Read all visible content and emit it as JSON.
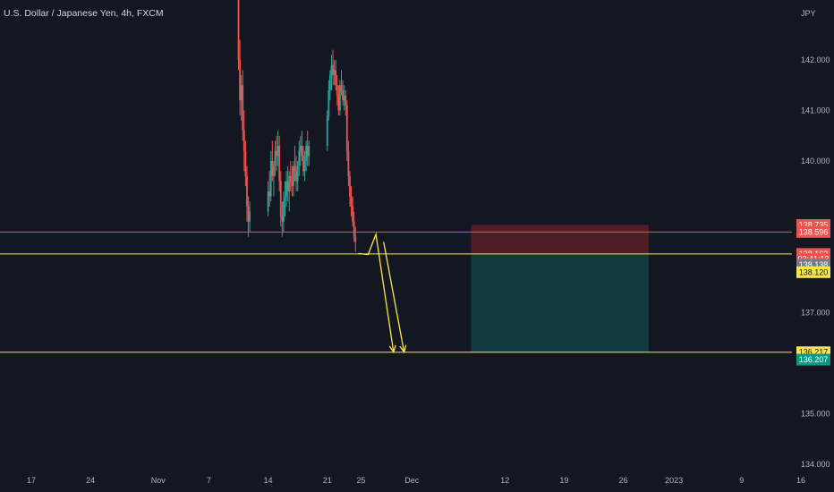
{
  "header": {
    "title": "U.S. Dollar / Japanese Yen, 4h, FXCM"
  },
  "axis": {
    "currency": "JPY"
  },
  "colors": {
    "background": "#131722",
    "up": "#26a69a",
    "down": "#ef5350",
    "drawing": "#fbe649",
    "stop_zone": "#5b1f27",
    "target_zone": "#123f43"
  },
  "chart_data": {
    "type": "candlestick",
    "title": "U.S. Dollar / Japanese Yen, 4h, FXCM",
    "y_unit": "JPY",
    "y_ticks": [
      {
        "value": 134,
        "label": "134.000"
      },
      {
        "value": 135,
        "label": "135.000"
      },
      {
        "value": 137,
        "label": "137.000"
      },
      {
        "value": 140,
        "label": "140.000"
      },
      {
        "value": 141,
        "label": "141.000"
      },
      {
        "value": 142,
        "label": "142.000"
      }
    ],
    "x_ticks": [
      {
        "date": "2022-10-17",
        "label": "17"
      },
      {
        "date": "2022-10-24",
        "label": "24"
      },
      {
        "date": "2022-11-01",
        "label": "Nov"
      },
      {
        "date": "2022-11-07",
        "label": "7"
      },
      {
        "date": "2022-11-14",
        "label": "14"
      },
      {
        "date": "2022-11-21",
        "label": "21"
      },
      {
        "date": "2022-11-25",
        "label": "25"
      },
      {
        "date": "2022-12-01",
        "label": "Dec"
      },
      {
        "date": "2022-12-12",
        "label": "12"
      },
      {
        "date": "2022-12-19",
        "label": "19"
      },
      {
        "date": "2022-12-26",
        "label": "26"
      },
      {
        "date": "2023-01-01",
        "label": "2023"
      },
      {
        "date": "2023-01-09",
        "label": "9"
      },
      {
        "date": "2023-01-16",
        "label": "16"
      }
    ],
    "candles": [
      [
        "2022-11-10 00:00",
        146.4,
        146.6,
        146.1,
        146.2
      ],
      [
        "2022-11-10 04:00",
        146.2,
        146.3,
        145.9,
        146.0
      ],
      [
        "2022-11-10 08:00",
        146.0,
        146.2,
        144.5,
        144.6
      ],
      [
        "2022-11-10 12:00",
        144.6,
        144.7,
        141.8,
        142.0
      ],
      [
        "2022-11-10 16:00",
        142.0,
        142.4,
        140.9,
        141.2
      ],
      [
        "2022-11-10 20:00",
        141.2,
        141.7,
        140.8,
        141.5
      ],
      [
        "2022-11-11 00:00",
        141.5,
        141.8,
        140.4,
        140.6
      ],
      [
        "2022-11-11 04:00",
        140.6,
        141.0,
        139.8,
        140.2
      ],
      [
        "2022-11-11 08:00",
        140.2,
        140.4,
        139.5,
        139.7
      ],
      [
        "2022-11-11 12:00",
        139.7,
        139.9,
        138.8,
        139.1
      ],
      [
        "2022-11-11 16:00",
        139.1,
        139.3,
        138.5,
        138.8
      ],
      [
        "2022-11-11 20:00",
        138.8,
        139.2,
        138.6,
        139.0
      ],
      [
        "2022-11-14 00:00",
        139.0,
        139.6,
        138.9,
        139.4
      ],
      [
        "2022-11-14 04:00",
        139.4,
        139.8,
        139.1,
        139.3
      ],
      [
        "2022-11-14 08:00",
        139.3,
        140.2,
        139.2,
        140.0
      ],
      [
        "2022-11-14 12:00",
        140.0,
        140.4,
        139.6,
        139.7
      ],
      [
        "2022-11-14 16:00",
        139.7,
        140.0,
        139.3,
        139.9
      ],
      [
        "2022-11-14 20:00",
        139.9,
        140.4,
        139.7,
        140.2
      ],
      [
        "2022-11-15 00:00",
        140.2,
        140.5,
        139.8,
        140.1
      ],
      [
        "2022-11-15 04:00",
        140.1,
        140.6,
        139.9,
        140.3
      ],
      [
        "2022-11-15 08:00",
        140.3,
        140.5,
        139.4,
        139.6
      ],
      [
        "2022-11-15 12:00",
        139.6,
        139.8,
        138.7,
        138.9
      ],
      [
        "2022-11-15 16:00",
        138.9,
        139.2,
        138.5,
        138.8
      ],
      [
        "2022-11-15 20:00",
        138.8,
        139.4,
        138.6,
        139.2
      ],
      [
        "2022-11-16 00:00",
        139.2,
        139.6,
        138.9,
        139.3
      ],
      [
        "2022-11-16 04:00",
        139.3,
        139.8,
        139.1,
        139.6
      ],
      [
        "2022-11-16 08:00",
        139.6,
        139.9,
        139.2,
        139.4
      ],
      [
        "2022-11-16 12:00",
        139.4,
        139.8,
        139.0,
        139.7
      ],
      [
        "2022-11-16 16:00",
        139.7,
        140.0,
        139.4,
        139.6
      ],
      [
        "2022-11-16 20:00",
        139.6,
        139.9,
        139.3,
        139.5
      ],
      [
        "2022-11-17 00:00",
        139.5,
        140.0,
        139.3,
        139.9
      ],
      [
        "2022-11-17 04:00",
        139.9,
        140.3,
        139.6,
        139.8
      ],
      [
        "2022-11-17 08:00",
        139.8,
        140.1,
        139.4,
        139.6
      ],
      [
        "2022-11-17 12:00",
        139.6,
        140.0,
        139.4,
        139.9
      ],
      [
        "2022-11-17 16:00",
        139.9,
        140.4,
        139.7,
        140.2
      ],
      [
        "2022-11-17 20:00",
        140.2,
        140.5,
        139.9,
        140.3
      ],
      [
        "2022-11-18 00:00",
        140.3,
        140.6,
        140.0,
        140.1
      ],
      [
        "2022-11-18 04:00",
        140.1,
        140.3,
        139.7,
        139.8
      ],
      [
        "2022-11-18 08:00",
        139.8,
        140.2,
        139.6,
        140.0
      ],
      [
        "2022-11-18 12:00",
        140.0,
        140.4,
        139.8,
        140.3
      ],
      [
        "2022-11-18 16:00",
        140.3,
        140.6,
        139.9,
        140.1
      ],
      [
        "2022-11-18 20:00",
        140.1,
        140.4,
        139.9,
        140.3
      ],
      [
        "2022-11-21 00:00",
        140.3,
        141.0,
        140.2,
        140.9
      ],
      [
        "2022-11-21 04:00",
        140.9,
        141.6,
        140.8,
        141.4
      ],
      [
        "2022-11-21 08:00",
        141.4,
        141.8,
        141.2,
        141.7
      ],
      [
        "2022-11-21 12:00",
        141.7,
        142.1,
        141.4,
        141.9
      ],
      [
        "2022-11-21 16:00",
        141.9,
        142.2,
        141.5,
        141.7
      ],
      [
        "2022-11-21 20:00",
        141.7,
        142.0,
        141.5,
        141.8
      ],
      [
        "2022-11-22 00:00",
        141.8,
        142.0,
        141.4,
        141.5
      ],
      [
        "2022-11-22 04:00",
        141.5,
        141.7,
        141.1,
        141.3
      ],
      [
        "2022-11-22 08:00",
        141.3,
        141.5,
        140.9,
        141.0
      ],
      [
        "2022-11-22 12:00",
        141.0,
        141.6,
        140.9,
        141.5
      ],
      [
        "2022-11-22 16:00",
        141.5,
        141.8,
        141.3,
        141.4
      ],
      [
        "2022-11-22 20:00",
        141.4,
        141.6,
        141.1,
        141.2
      ],
      [
        "2022-11-23 00:00",
        141.2,
        141.5,
        141.0,
        141.3
      ],
      [
        "2022-11-23 04:00",
        141.3,
        141.4,
        140.9,
        141.1
      ],
      [
        "2022-11-23 08:00",
        141.1,
        141.2,
        140.0,
        140.2
      ],
      [
        "2022-11-23 12:00",
        140.2,
        140.4,
        139.5,
        139.7
      ],
      [
        "2022-11-23 16:00",
        139.7,
        139.8,
        139.1,
        139.3
      ],
      [
        "2022-11-23 20:00",
        139.3,
        139.5,
        138.9,
        139.1
      ],
      [
        "2022-11-24 00:00",
        139.1,
        139.3,
        138.7,
        138.8
      ],
      [
        "2022-11-24 04:00",
        138.8,
        139.0,
        138.4,
        138.5
      ],
      [
        "2022-11-24 08:00",
        138.5,
        138.7,
        138.2,
        138.4
      ]
    ],
    "horizontal_lines": [
      {
        "price": 138.596,
        "color": "#ef5350"
      },
      {
        "price": 138.162,
        "color": "#fbe649"
      },
      {
        "price": 136.217,
        "color": "#fbe649"
      }
    ],
    "position": {
      "entry": 138.162,
      "stop": 138.735,
      "target": 136.207,
      "start": "2022-12-08",
      "end": "2022-12-29"
    },
    "path_drawing": [
      {
        "date": "2022-11-24 16:00",
        "price": 138.17
      },
      {
        "date": "2022-11-25 20:00",
        "price": 138.15
      },
      {
        "date": "2022-11-26 18:00",
        "price": 138.55
      },
      {
        "date": "2022-11-28 20:00",
        "price": 136.22
      }
    ],
    "path_drawing_2": [
      {
        "date": "2022-11-27 16:00",
        "price": 138.4
      },
      {
        "date": "2022-11-30 02:00",
        "price": 136.22
      }
    ],
    "price_tags": [
      {
        "label": "138.735",
        "price": 138.735,
        "bg": "#ef5350",
        "fg": "#ffffff"
      },
      {
        "label": "138.596",
        "price": 138.596,
        "bg": "#ef5350",
        "fg": "#ffffff"
      },
      {
        "label": "138.162",
        "price": 138.162,
        "bg": "#ef5350",
        "fg": "#ffffff"
      },
      {
        "label": "03:41:13",
        "price": 138.06,
        "bg": "#ef5350",
        "fg": "#ffffff"
      },
      {
        "label": "138.138",
        "price": 137.95,
        "bg": "#787b86",
        "fg": "#ffffff"
      },
      {
        "label": "138.120",
        "price": 137.8,
        "bg": "#fbe649",
        "fg": "#131722"
      },
      {
        "label": "136.217",
        "price": 136.217,
        "bg": "#fbe649",
        "fg": "#131722"
      },
      {
        "label": "136.207",
        "price": 136.07,
        "bg": "#089981",
        "fg": "#ffffff"
      }
    ]
  }
}
